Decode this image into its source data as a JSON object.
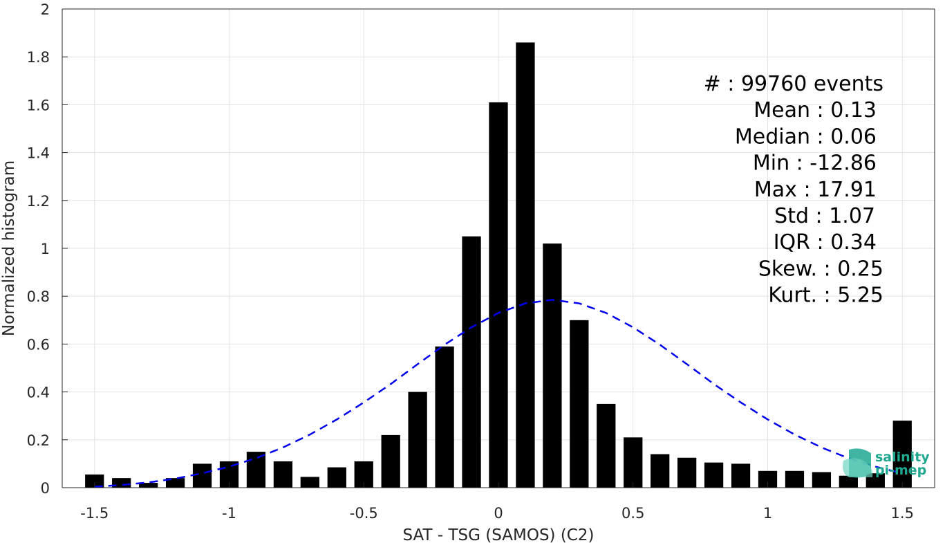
{
  "chart_data": {
    "type": "bar",
    "title": "",
    "xlabel": "SAT - TSG (SAMOS) (C2)",
    "ylabel": "Normalized histogram",
    "xlim": [
      -1.62,
      1.62
    ],
    "ylim": [
      0,
      2
    ],
    "grid": true,
    "bar_width": 0.07,
    "x_ticks": [
      -1.5,
      -1,
      -0.5,
      0,
      0.5,
      1,
      1.5
    ],
    "x_tick_labels": [
      "-1.5",
      "-1",
      "-0.5",
      "0",
      "0.5",
      "1",
      "1.5"
    ],
    "y_ticks": [
      0,
      0.2,
      0.4,
      0.6,
      0.8,
      1,
      1.2,
      1.4,
      1.6,
      1.8,
      2
    ],
    "y_tick_labels": [
      "0",
      "0.2",
      "0.4",
      "0.6",
      "0.8",
      "1",
      "1.2",
      "1.4",
      "1.6",
      "1.8",
      "2"
    ],
    "series": [
      {
        "type": "bar",
        "color": "#000000",
        "x": [
          -1.5,
          -1.4,
          -1.3,
          -1.2,
          -1.1,
          -1.0,
          -0.9,
          -0.8,
          -0.7,
          -0.6,
          -0.5,
          -0.4,
          -0.3,
          -0.2,
          -0.1,
          0.0,
          0.1,
          0.2,
          0.3,
          0.4,
          0.5,
          0.6,
          0.7,
          0.8,
          0.9,
          1.0,
          1.1,
          1.2,
          1.3,
          1.4,
          1.5
        ],
        "values": [
          0.055,
          0.04,
          0.02,
          0.04,
          0.1,
          0.11,
          0.15,
          0.11,
          0.045,
          0.085,
          0.11,
          0.22,
          0.4,
          0.59,
          1.05,
          1.61,
          1.86,
          1.02,
          0.7,
          0.35,
          0.21,
          0.14,
          0.125,
          0.105,
          0.1,
          0.07,
          0.07,
          0.065,
          0.05,
          0.06,
          0.28
        ]
      },
      {
        "type": "line",
        "style": "dashed",
        "color": "#0000ee",
        "x": [
          -1.5,
          -1.4,
          -1.3,
          -1.2,
          -1.1,
          -1.0,
          -0.9,
          -0.8,
          -0.7,
          -0.6,
          -0.5,
          -0.4,
          -0.3,
          -0.2,
          -0.1,
          0.0,
          0.1,
          0.2,
          0.3,
          0.4,
          0.5,
          0.6,
          0.7,
          0.8,
          0.9,
          1.0,
          1.1,
          1.2,
          1.3,
          1.4,
          1.5
        ],
        "values": [
          0.004,
          0.011,
          0.022,
          0.038,
          0.06,
          0.088,
          0.123,
          0.168,
          0.222,
          0.285,
          0.356,
          0.433,
          0.516,
          0.597,
          0.67,
          0.73,
          0.77,
          0.785,
          0.77,
          0.73,
          0.67,
          0.597,
          0.516,
          0.433,
          0.356,
          0.285,
          0.222,
          0.168,
          0.123,
          0.088,
          0.06
        ]
      }
    ],
    "annotations": [
      "#  : 99760 events",
      "Mean : 0.13",
      "Median : 0.06",
      "Min : -12.86",
      "Max : 17.91",
      "Std : 1.07",
      "IQR : 0.34",
      "Skew. : 0.25",
      "Kurt. : 5.25"
    ],
    "logo": {
      "line1": "salinity",
      "line2": "pi-mep",
      "color": "#1fa890"
    }
  }
}
